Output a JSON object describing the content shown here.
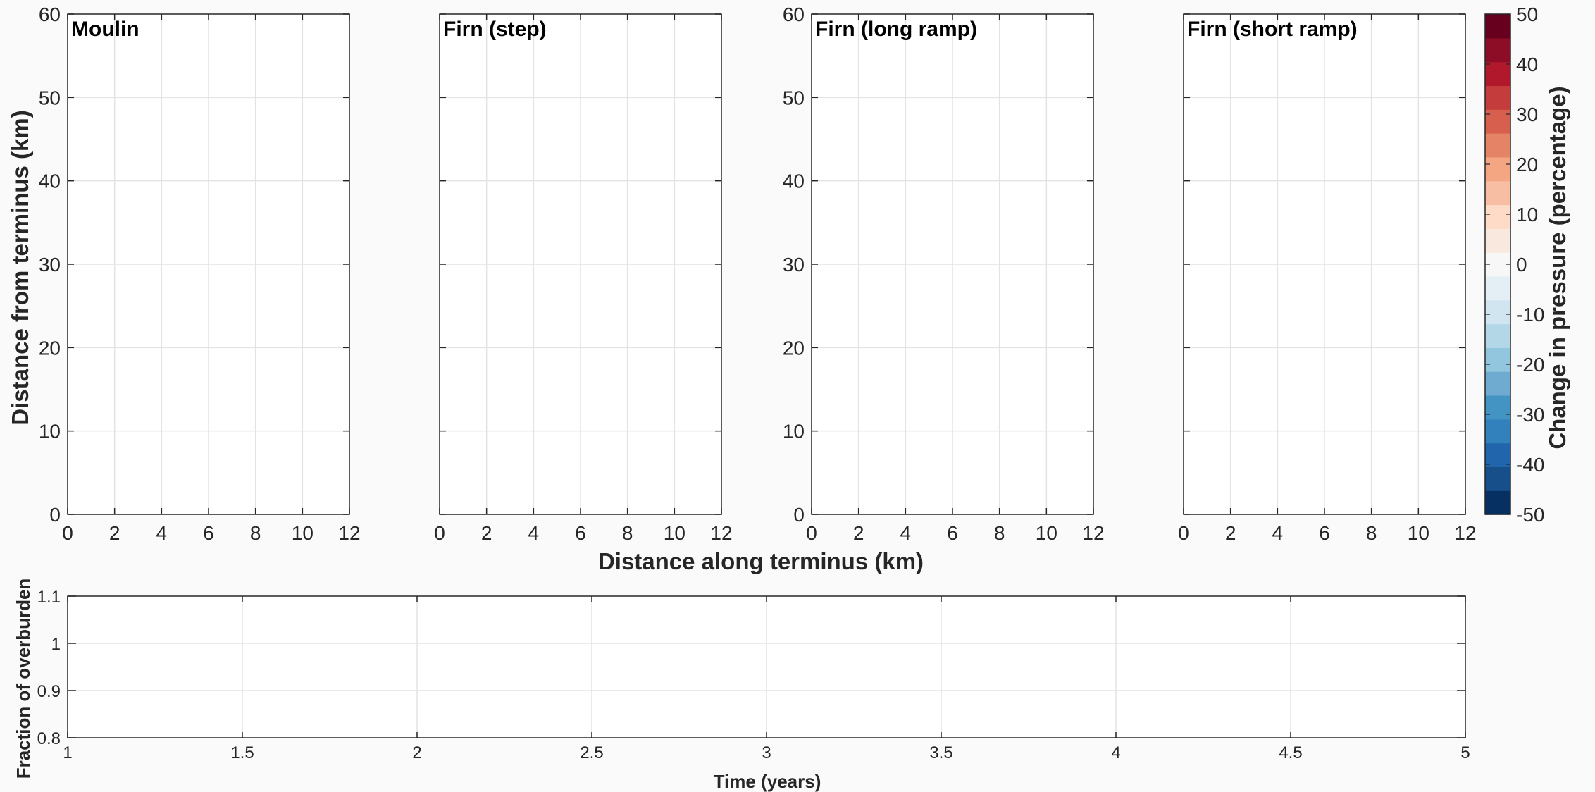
{
  "chart_data": [
    {
      "type": "heatmap",
      "title": "Moulin",
      "xlabel": "Distance along terminus (km)",
      "ylabel": "Distance from terminus (km)",
      "xlim": [
        0,
        12
      ],
      "ylim": [
        0,
        60
      ],
      "xticks": [
        0,
        2,
        4,
        6,
        8,
        10,
        12
      ],
      "yticks": [
        0,
        10,
        20,
        30,
        40,
        50,
        60
      ],
      "grid": true,
      "values": []
    },
    {
      "type": "heatmap",
      "title": "Firn (step)",
      "xlim": [
        0,
        12
      ],
      "ylim": [
        0,
        60
      ],
      "xticks": [
        0,
        2,
        4,
        6,
        8,
        10,
        12
      ],
      "yticks": [
        0,
        10,
        20,
        30,
        40,
        50,
        60
      ],
      "grid": true,
      "values": []
    },
    {
      "type": "heatmap",
      "title": "Firn (long ramp)",
      "xlim": [
        0,
        12
      ],
      "ylim": [
        0,
        60
      ],
      "xticks": [
        0,
        2,
        4,
        6,
        8,
        10,
        12
      ],
      "yticks": [
        0,
        10,
        20,
        30,
        40,
        50,
        60
      ],
      "grid": true,
      "values": []
    },
    {
      "type": "heatmap",
      "title": "Firn (short ramp)",
      "xlim": [
        0,
        12
      ],
      "ylim": [
        0,
        60
      ],
      "xticks": [
        0,
        2,
        4,
        6,
        8,
        10,
        12
      ],
      "yticks": [
        0,
        10,
        20,
        30,
        40,
        50,
        60
      ],
      "grid": true,
      "values": []
    },
    {
      "type": "line",
      "xlabel": "Time (years)",
      "ylabel": "Fraction of overburden",
      "xlim": [
        1,
        5
      ],
      "ylim": [
        0.8,
        1.1
      ],
      "xticks": [
        "1",
        "1.5",
        "2",
        "2.5",
        "3",
        "3.5",
        "4",
        "4.5",
        "5"
      ],
      "yticks": [
        "0.8",
        "0.9",
        "1",
        "1.1"
      ],
      "grid": true,
      "series": []
    }
  ],
  "colorbar": {
    "label": "Change in pressure (percentage)",
    "range": [
      -50,
      50
    ],
    "ticks": [
      "-50",
      "-40",
      "-30",
      "-20",
      "-10",
      "0",
      "10",
      "20",
      "30",
      "40",
      "50"
    ],
    "colors": [
      "#053061",
      "#164f8a",
      "#2166ac",
      "#3281bc",
      "#4393c3",
      "#6fabd1",
      "#92c5de",
      "#b4d7e8",
      "#d1e5f0",
      "#e4eef5",
      "#f7f7f7",
      "#f9e8de",
      "#fddbc7",
      "#f8bea4",
      "#f4a582",
      "#e58366",
      "#d6604d",
      "#c43c3c",
      "#b2182b",
      "#8c0d25",
      "#67001f"
    ]
  }
}
